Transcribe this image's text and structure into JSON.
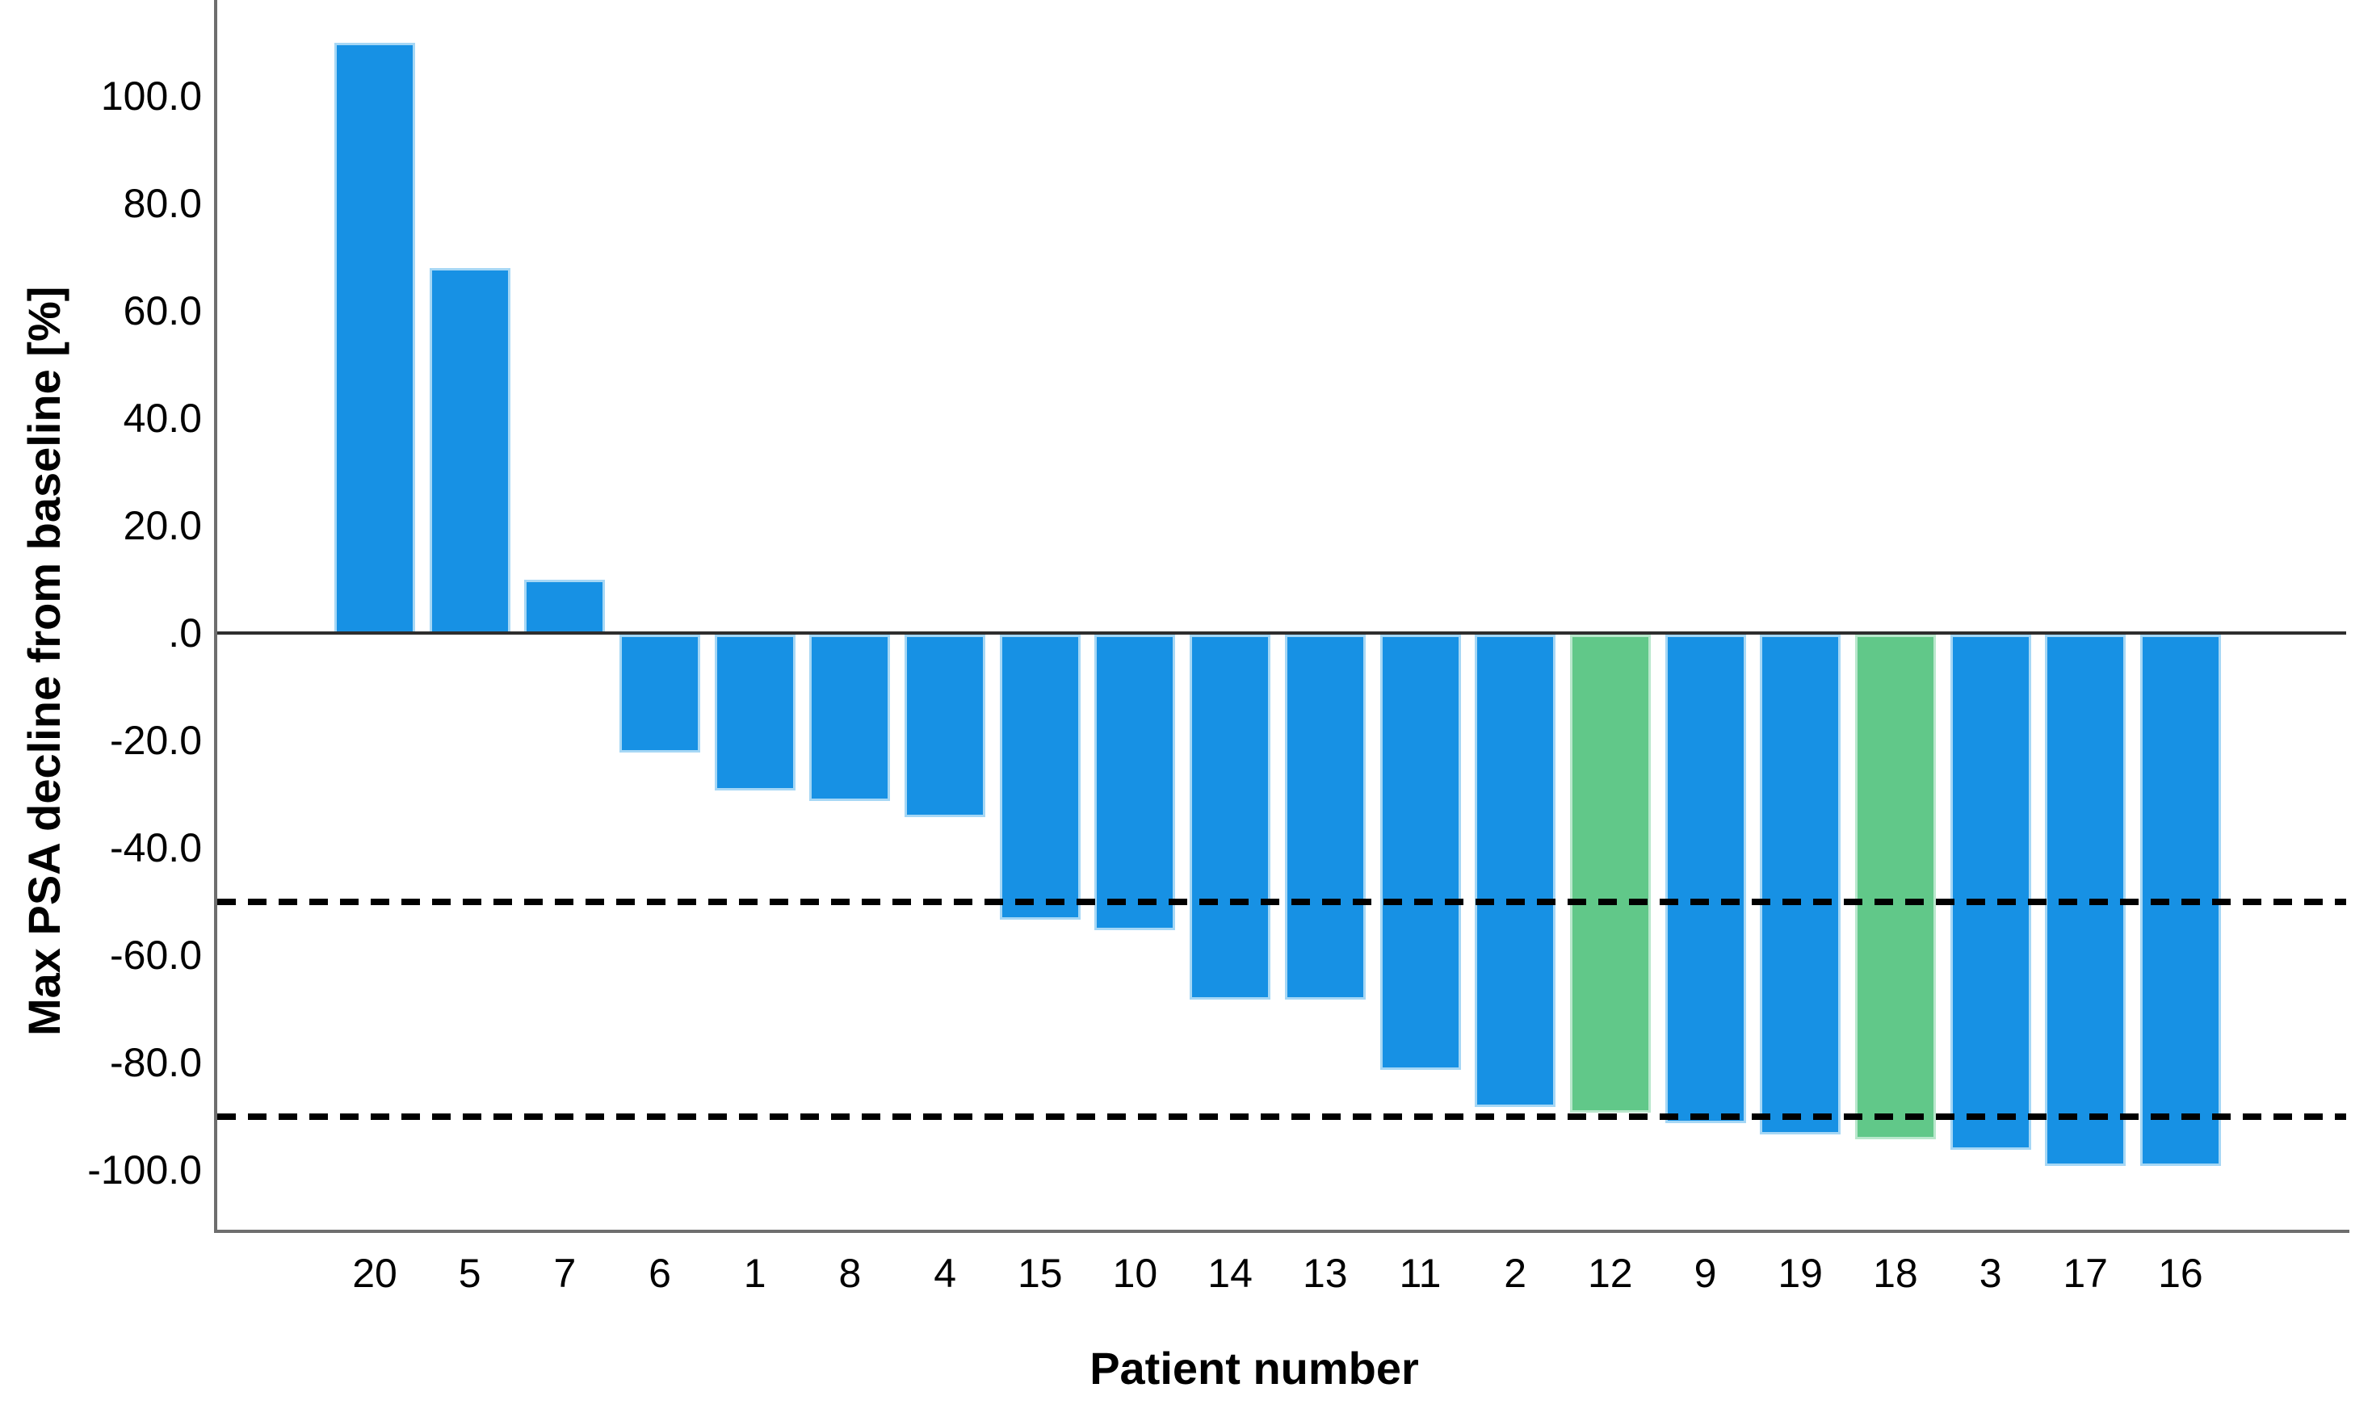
{
  "chart_data": {
    "type": "bar",
    "subtype": "waterfall",
    "title": "",
    "xlabel": "Patient number",
    "ylabel": "Max PSA decline from baseline [%]",
    "categories": [
      "20",
      "5",
      "7",
      "6",
      "1",
      "8",
      "4",
      "15",
      "10",
      "14",
      "13",
      "11",
      "2",
      "12",
      "9",
      "19",
      "18",
      "3",
      "17",
      "16"
    ],
    "values": [
      110,
      68,
      10,
      -22,
      -29,
      -31,
      -34,
      -53,
      -55,
      -68,
      -68,
      -81,
      -88,
      -89,
      -91,
      -93,
      -94,
      -96,
      -99,
      -99
    ],
    "bar_color_names": [
      "blue",
      "blue",
      "blue",
      "blue",
      "blue",
      "blue",
      "blue",
      "blue",
      "blue",
      "blue",
      "blue",
      "blue",
      "blue",
      "green",
      "blue",
      "blue",
      "green",
      "blue",
      "blue",
      "blue"
    ],
    "ytick_values": [
      100,
      80,
      60,
      40,
      20,
      0,
      -20,
      -40,
      -60,
      -80,
      -100
    ],
    "ytick_labels": [
      "100.0",
      "80.0",
      "60.0",
      "40.0",
      "20.0",
      ".0",
      "-20.0",
      "-40.0",
      "-60.0",
      "-80.0",
      "-100.0"
    ],
    "ylim": [
      -111,
      118
    ],
    "grid": false,
    "legend": null,
    "reference_lines": {
      "style": "dashed",
      "color": "#000000",
      "values": [
        -50,
        -90
      ]
    },
    "colors": {
      "bar_blue": "#1791e4",
      "bar_blue_stroke": "#a6d7f5",
      "bar_green": "#61c889",
      "bar_green_stroke": "#b9e7cc",
      "zero_line": "#2e2e2e",
      "axis_line": "#6e6e6e",
      "text": "#000000",
      "background": "#ffffff"
    }
  }
}
